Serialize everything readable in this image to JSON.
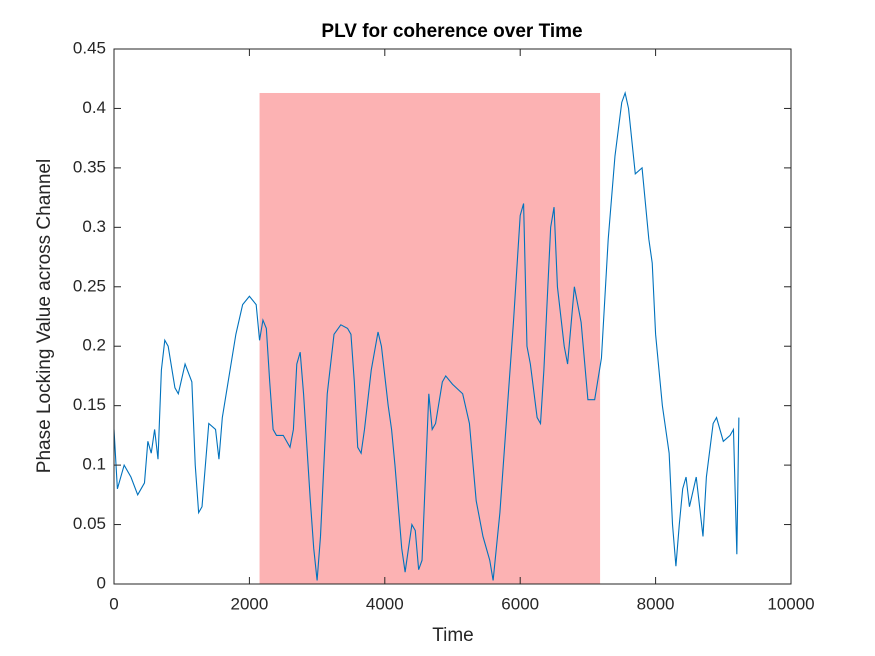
{
  "chart_data": {
    "type": "line",
    "title": "PLV for coherence over Time",
    "xlabel": "Time",
    "ylabel": "Phase Locking Value across Channel",
    "xlim": [
      0,
      10000
    ],
    "xticks": [
      0,
      2000,
      4000,
      6000,
      8000,
      10000
    ],
    "ylim": [
      0,
      0.45
    ],
    "yticks": [
      0,
      0.05,
      0.1,
      0.15,
      0.2,
      0.25,
      0.3,
      0.35,
      0.4,
      0.45
    ],
    "highlight": {
      "xlim": [
        2150,
        7180
      ],
      "ylim": [
        0,
        0.413
      ],
      "color": "#fcb2b3"
    },
    "series": [
      {
        "color": "#0072bd",
        "x": [
          0,
          50,
          150,
          250,
          350,
          450,
          500,
          550,
          600,
          650,
          700,
          750,
          800,
          900,
          950,
          1050,
          1150,
          1200,
          1250,
          1300,
          1400,
          1500,
          1550,
          1600,
          1700,
          1800,
          1900,
          2000,
          2100,
          2150,
          2200,
          2250,
          2300,
          2350,
          2400,
          2500,
          2600,
          2650,
          2700,
          2750,
          2800,
          2900,
          2950,
          3000,
          3050,
          3150,
          3250,
          3350,
          3450,
          3500,
          3550,
          3600,
          3650,
          3700,
          3800,
          3900,
          3950,
          4050,
          4100,
          4150,
          4250,
          4300,
          4400,
          4450,
          4500,
          4550,
          4650,
          4700,
          4750,
          4850,
          4900,
          5000,
          5150,
          5250,
          5350,
          5450,
          5550,
          5600,
          5700,
          5800,
          5900,
          6000,
          6050,
          6100,
          6150,
          6250,
          6300,
          6350,
          6450,
          6500,
          6550,
          6650,
          6700,
          6800,
          6900,
          7000,
          7100,
          7200,
          7300,
          7400,
          7500,
          7550,
          7600,
          7700,
          7800,
          7900,
          7950,
          8000,
          8100,
          8200,
          8250,
          8300,
          8350,
          8400,
          8450,
          8500,
          8600,
          8700,
          8750,
          8850,
          8900,
          9000,
          9100,
          9150,
          9200,
          9230
        ],
        "values": [
          0.13,
          0.08,
          0.1,
          0.09,
          0.075,
          0.085,
          0.12,
          0.11,
          0.13,
          0.105,
          0.18,
          0.205,
          0.2,
          0.165,
          0.16,
          0.185,
          0.17,
          0.1,
          0.06,
          0.065,
          0.135,
          0.13,
          0.105,
          0.14,
          0.175,
          0.21,
          0.235,
          0.242,
          0.235,
          0.205,
          0.222,
          0.215,
          0.17,
          0.13,
          0.125,
          0.125,
          0.115,
          0.13,
          0.185,
          0.195,
          0.16,
          0.07,
          0.03,
          0.003,
          0.04,
          0.16,
          0.21,
          0.218,
          0.215,
          0.21,
          0.17,
          0.115,
          0.11,
          0.13,
          0.18,
          0.212,
          0.2,
          0.15,
          0.13,
          0.1,
          0.03,
          0.01,
          0.05,
          0.045,
          0.012,
          0.02,
          0.16,
          0.13,
          0.135,
          0.17,
          0.175,
          0.168,
          0.16,
          0.135,
          0.07,
          0.04,
          0.02,
          0.003,
          0.06,
          0.14,
          0.22,
          0.31,
          0.32,
          0.2,
          0.185,
          0.14,
          0.135,
          0.18,
          0.3,
          0.317,
          0.25,
          0.2,
          0.185,
          0.25,
          0.22,
          0.155,
          0.155,
          0.19,
          0.29,
          0.36,
          0.405,
          0.413,
          0.4,
          0.345,
          0.35,
          0.29,
          0.27,
          0.21,
          0.15,
          0.11,
          0.05,
          0.015,
          0.05,
          0.08,
          0.09,
          0.065,
          0.09,
          0.04,
          0.09,
          0.135,
          0.14,
          0.12,
          0.125,
          0.13,
          0.025,
          0.14
        ]
      }
    ]
  }
}
